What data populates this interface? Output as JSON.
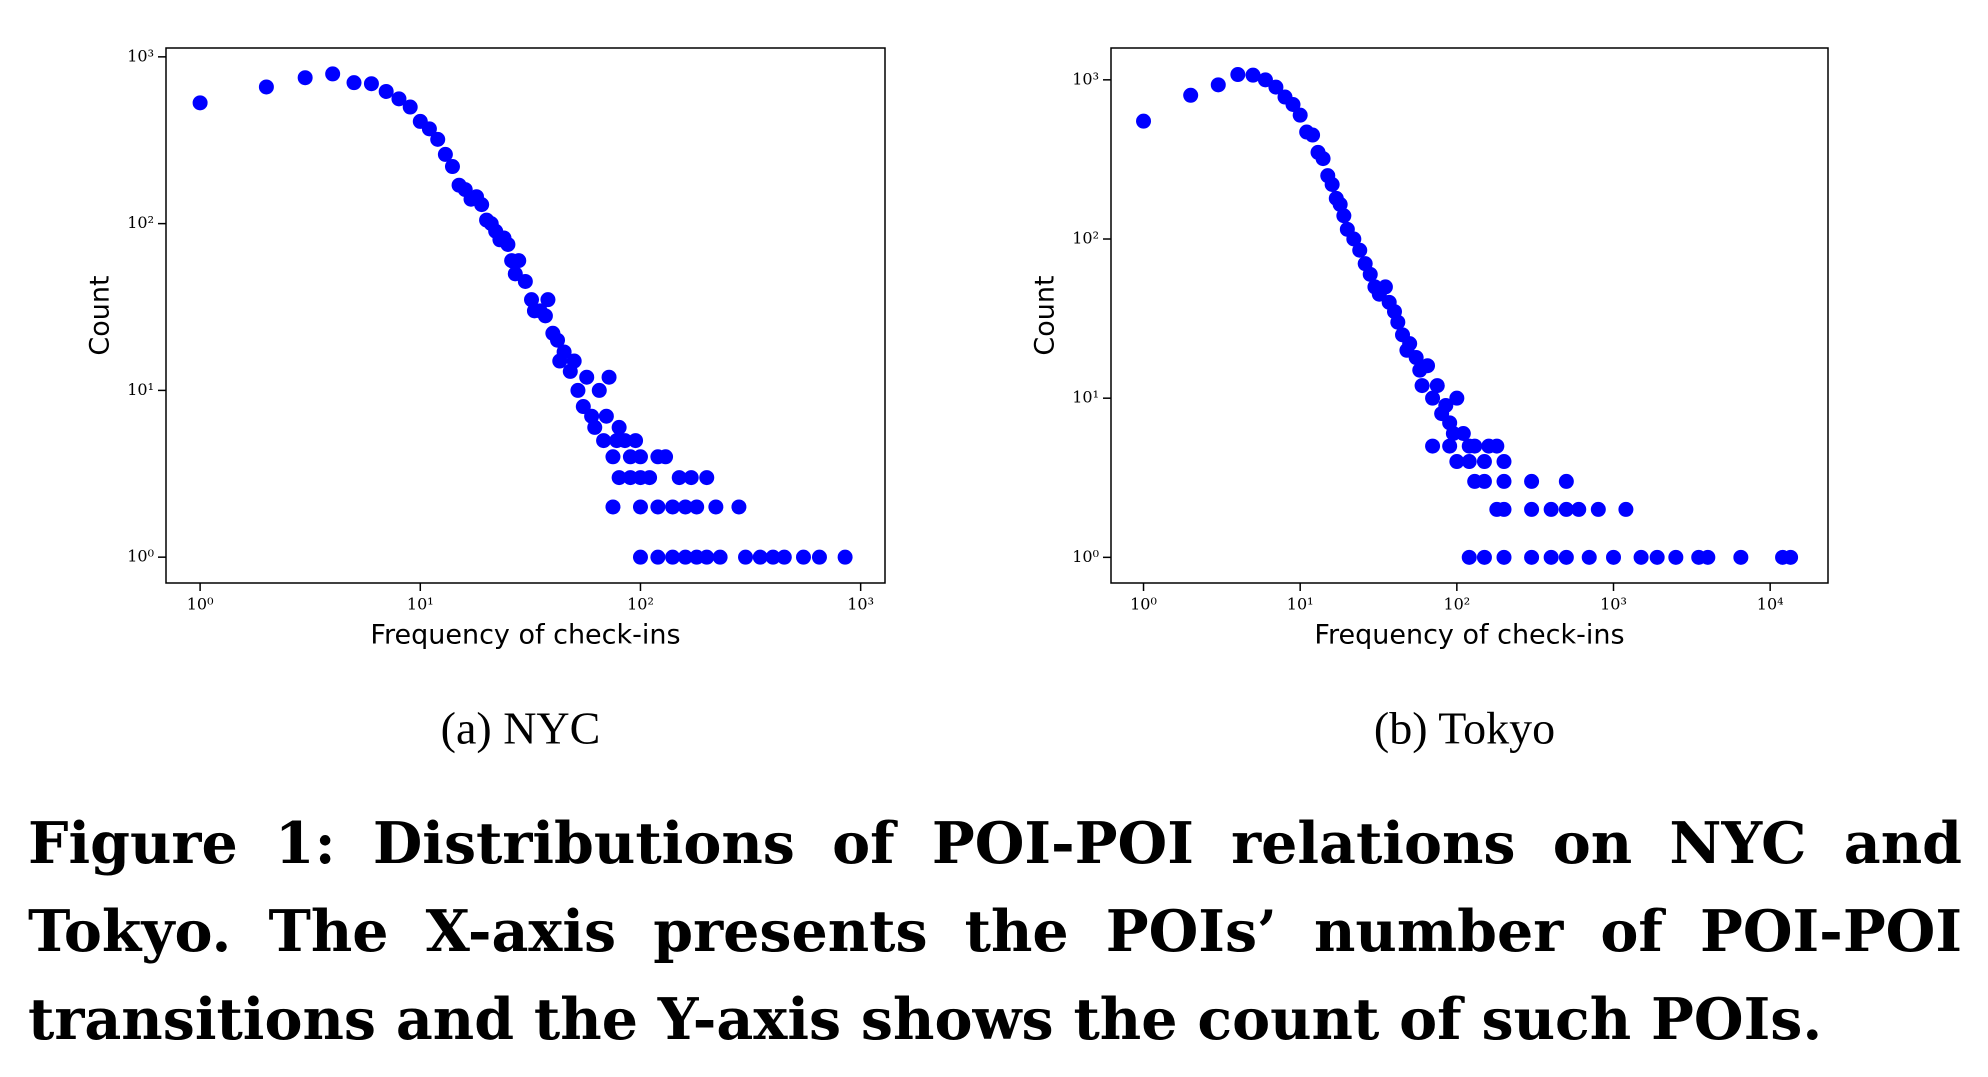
{
  "chart_data": [
    {
      "type": "scatter",
      "subcaption": "(a) NYC",
      "xlabel": "Frequency of check-ins",
      "ylabel": "Count",
      "xscale": "log",
      "yscale": "log",
      "color": "#0000ff",
      "xlim": [
        0.7,
        1290
      ],
      "ylim": [
        0.7,
        1130
      ],
      "xticks": [
        {
          "value": 1,
          "label": "10⁰"
        },
        {
          "value": 10,
          "label": "10¹"
        },
        {
          "value": 100,
          "label": "10²"
        },
        {
          "value": 1000,
          "label": "10³"
        }
      ],
      "yticks": [
        {
          "value": 1,
          "label": "10⁰"
        },
        {
          "value": 10,
          "label": "10¹"
        },
        {
          "value": 100,
          "label": "10²"
        },
        {
          "value": 1000,
          "label": "10³"
        }
      ],
      "x": [
        1,
        2,
        3,
        4,
        5,
        6,
        7,
        8,
        9,
        10,
        11,
        12,
        13,
        14,
        15,
        16,
        17,
        18,
        19,
        20,
        21,
        22,
        23,
        24,
        25,
        26,
        27,
        28,
        30,
        32,
        33,
        35,
        37,
        38,
        40,
        42,
        43,
        45,
        48,
        50,
        52,
        55,
        57,
        60,
        62,
        65,
        68,
        70,
        72,
        75,
        78,
        80,
        85,
        90,
        95,
        100,
        110,
        120,
        130,
        150,
        170,
        200,
        80,
        90,
        100,
        75,
        100,
        120,
        140,
        160,
        180,
        220,
        280,
        100,
        120,
        140,
        160,
        180,
        200,
        230,
        300,
        350,
        400,
        450,
        550,
        650,
        850
      ],
      "values": [
        530,
        660,
        750,
        790,
        700,
        690,
        620,
        560,
        500,
        410,
        370,
        320,
        260,
        220,
        170,
        160,
        140,
        145,
        130,
        105,
        100,
        90,
        80,
        82,
        75,
        60,
        50,
        60,
        45,
        35,
        30,
        30,
        28,
        35,
        22,
        20,
        15,
        17,
        13,
        15,
        10,
        8,
        12,
        7,
        6,
        10,
        5,
        7,
        12,
        4,
        5,
        6,
        5,
        4,
        5,
        4,
        3,
        4,
        4,
        3,
        3,
        3,
        3,
        3,
        3,
        2,
        2,
        2,
        2,
        2,
        2,
        2,
        2,
        1,
        1,
        1,
        1,
        1,
        1,
        1,
        1,
        1,
        1,
        1,
        1,
        1,
        1
      ]
    },
    {
      "type": "scatter",
      "subcaption": "(b) Tokyo",
      "xlabel": "Frequency of check-ins",
      "ylabel": "Count",
      "xscale": "log",
      "yscale": "log",
      "color": "#0000ff",
      "xlim": [
        0.62,
        23400
      ],
      "ylim": [
        0.69,
        1585
      ],
      "xticks": [
        {
          "value": 1,
          "label": "10⁰"
        },
        {
          "value": 10,
          "label": "10¹"
        },
        {
          "value": 100,
          "label": "10²"
        },
        {
          "value": 1000,
          "label": "10³"
        },
        {
          "value": 10000,
          "label": "10⁴"
        }
      ],
      "yticks": [
        {
          "value": 1,
          "label": "10⁰"
        },
        {
          "value": 10,
          "label": "10¹"
        },
        {
          "value": 100,
          "label": "10²"
        },
        {
          "value": 1000,
          "label": "10³"
        }
      ],
      "x": [
        1,
        2,
        3,
        4,
        5,
        6,
        7,
        8,
        9,
        10,
        11,
        12,
        13,
        14,
        15,
        16,
        17,
        18,
        19,
        20,
        22,
        24,
        26,
        28,
        30,
        32,
        35,
        37,
        40,
        42,
        45,
        48,
        50,
        55,
        58,
        60,
        65,
        70,
        75,
        80,
        85,
        90,
        95,
        100,
        110,
        120,
        130,
        150,
        160,
        180,
        200,
        70,
        90,
        120,
        100,
        130,
        150,
        200,
        300,
        500,
        180,
        200,
        300,
        400,
        500,
        600,
        800,
        1200,
        120,
        150,
        200,
        300,
        400,
        500,
        700,
        1000,
        1500,
        1900,
        2500,
        3500,
        4000,
        6500,
        12000,
        13500
      ],
      "values": [
        550,
        800,
        930,
        1080,
        1070,
        1000,
        900,
        780,
        700,
        600,
        470,
        450,
        350,
        320,
        250,
        220,
        180,
        165,
        140,
        115,
        100,
        85,
        70,
        60,
        50,
        45,
        50,
        40,
        35,
        30,
        25,
        20,
        22,
        18,
        15,
        12,
        16,
        10,
        12,
        8,
        9,
        7,
        6,
        10,
        6,
        5,
        5,
        4,
        5,
        5,
        4,
        5,
        5,
        4,
        4,
        3,
        3,
        3,
        3,
        3,
        2,
        2,
        2,
        2,
        2,
        2,
        2,
        2,
        1,
        1,
        1,
        1,
        1,
        1,
        1,
        1,
        1,
        1,
        1,
        1,
        1,
        1,
        1,
        1
      ]
    }
  ],
  "caption": "Figure 1: Distributions of POI-POI relations on NYC and Tokyo. The X-axis presents the POIs’ number of POI-POI transitions and the Y-axis shows the count of such POIs."
}
